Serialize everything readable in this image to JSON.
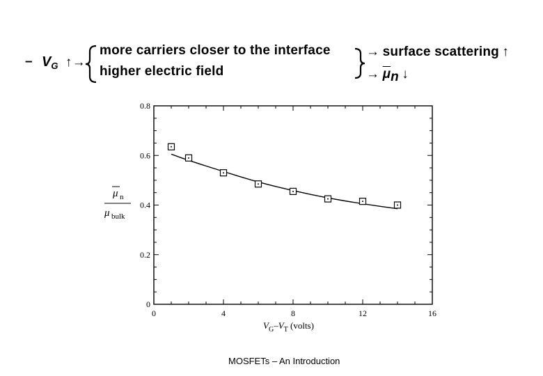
{
  "header": {
    "bullet": "–",
    "vg_letter": "V",
    "vg_sub": "G",
    "vg_arrow": "↑→",
    "cause_1": "more  carriers  closer  to  the  interface",
    "cause_2": "higher  electric  field",
    "effect_1_arrow": "→",
    "effect_1": "surface scattering",
    "effect_1_up": "↑",
    "effect_2_arrow": "→",
    "effect_2_mu": "μ",
    "effect_2_sub": "n",
    "effect_2_down": "↓"
  },
  "chart_data": {
    "type": "scatter",
    "x_label_parts": {
      "v1": "V",
      "s1": "G",
      "dash": "–",
      "v2": "V",
      "s2": "T",
      "unit": " (volts)"
    },
    "y_label_parts": {
      "num_mu": "μ",
      "num_sub": "n",
      "den_mu": "μ",
      "den_sub": "bulk"
    },
    "xlim": [
      0,
      16
    ],
    "ylim": [
      0,
      0.8
    ],
    "x_ticks": [
      "0",
      "4",
      "8",
      "12",
      "16"
    ],
    "y_ticks": [
      "0",
      "0.2",
      "0.4",
      "0.6",
      "0.8"
    ],
    "series": [
      {
        "kind": "measured",
        "x": [
          1,
          2,
          4,
          6,
          8,
          10,
          12,
          14
        ],
        "y": [
          0.635,
          0.59,
          0.53,
          0.485,
          0.455,
          0.425,
          0.415,
          0.4
        ]
      },
      {
        "kind": "fit",
        "x": [
          1,
          2,
          4,
          6,
          8,
          10,
          12,
          14
        ],
        "y": [
          0.605,
          0.58,
          0.535,
          0.492,
          0.458,
          0.428,
          0.405,
          0.385
        ]
      }
    ],
    "grid": false
  },
  "footer": {
    "caption": "MOSFETs – An Introduction"
  }
}
